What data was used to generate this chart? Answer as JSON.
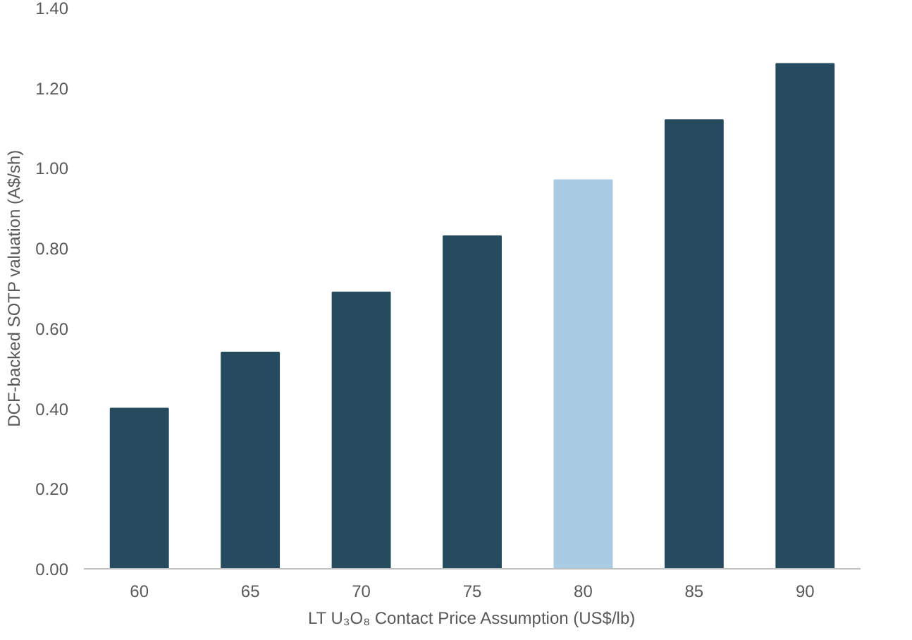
{
  "chart_data": {
    "type": "bar",
    "xlabel": "LT U₃O₈ Contact Price Assumption (US$/lb)",
    "ylabel": "DCF-backed SOTP valuation (A$/sh)",
    "categories": [
      "60",
      "65",
      "70",
      "75",
      "80",
      "85",
      "90"
    ],
    "values": [
      0.4,
      0.54,
      0.69,
      0.83,
      0.97,
      1.12,
      1.26
    ],
    "colors": [
      "#264a5e",
      "#264a5e",
      "#264a5e",
      "#264a5e",
      "#a9cbe3",
      "#264a5e",
      "#264a5e"
    ],
    "ylim": [
      0,
      1.4
    ],
    "yticks": [
      {
        "value": 0,
        "label": "0.00"
      },
      {
        "value": 0.2,
        "label": "0.20"
      },
      {
        "value": 0.4,
        "label": "0.40"
      },
      {
        "value": 0.6,
        "label": "0.60"
      },
      {
        "value": 0.8,
        "label": "0.80"
      },
      {
        "value": 1.0,
        "label": "1.00"
      },
      {
        "value": 1.2,
        "label": "1.20"
      },
      {
        "value": 1.4,
        "label": "1.40"
      }
    ],
    "grid": false
  }
}
